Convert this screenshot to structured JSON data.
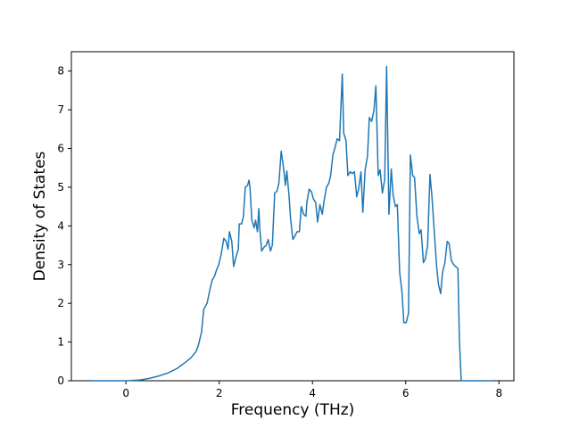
{
  "chart_data": {
    "type": "line",
    "x_label": "Frequency (THz)",
    "y_label": "Density of States",
    "x": [
      -0.73,
      0,
      0.3,
      0.5,
      0.7,
      0.9,
      1.1,
      1.3,
      1.4,
      1.5,
      1.55,
      1.62,
      1.67,
      1.74,
      1.8,
      1.85,
      1.9,
      1.94,
      1.99,
      2.04,
      2.1,
      2.15,
      2.19,
      2.22,
      2.27,
      2.31,
      2.36,
      2.41,
      2.43,
      2.48,
      2.52,
      2.56,
      2.61,
      2.64,
      2.66,
      2.7,
      2.75,
      2.78,
      2.82,
      2.85,
      2.87,
      2.91,
      2.96,
      3.01,
      3.05,
      3.1,
      3.14,
      3.19,
      3.24,
      3.28,
      3.33,
      3.38,
      3.42,
      3.45,
      3.5,
      3.53,
      3.58,
      3.63,
      3.67,
      3.72,
      3.76,
      3.81,
      3.86,
      3.88,
      3.93,
      3.98,
      4.02,
      4.07,
      4.11,
      4.16,
      4.21,
      4.25,
      4.3,
      4.35,
      4.39,
      4.44,
      4.48,
      4.53,
      4.58,
      4.64,
      4.67,
      4.72,
      4.76,
      4.81,
      4.85,
      4.9,
      4.95,
      4.99,
      5.04,
      5.08,
      5.13,
      5.18,
      5.22,
      5.27,
      5.32,
      5.36,
      5.41,
      5.45,
      5.5,
      5.55,
      5.59,
      5.64,
      5.69,
      5.73,
      5.78,
      5.82,
      5.87,
      5.92,
      5.96,
      6.01,
      6.06,
      6.1,
      6.15,
      6.19,
      6.24,
      6.29,
      6.33,
      6.38,
      6.42,
      6.47,
      6.52,
      6.56,
      6.61,
      6.66,
      6.7,
      6.75,
      6.79,
      6.84,
      6.89,
      6.93,
      6.98,
      7.03,
      7.07,
      7.12,
      7.15,
      7.19,
      7.87
    ],
    "series": [
      {
        "color": "#1f77b4",
        "values": [
          0,
          0,
          0.02,
          0.06,
          0.12,
          0.2,
          0.32,
          0.5,
          0.6,
          0.75,
          0.9,
          1.25,
          1.85,
          2.0,
          2.35,
          2.6,
          2.7,
          2.85,
          3.0,
          3.25,
          3.68,
          3.6,
          3.4,
          3.85,
          3.6,
          2.95,
          3.2,
          3.4,
          4.05,
          4.05,
          4.25,
          5.0,
          5.05,
          5.18,
          5.0,
          4.15,
          3.95,
          4.15,
          3.85,
          4.45,
          3.95,
          3.35,
          3.45,
          3.5,
          3.65,
          3.35,
          3.5,
          4.85,
          4.9,
          5.1,
          5.93,
          5.5,
          5.05,
          5.42,
          4.75,
          4.2,
          3.65,
          3.75,
          3.85,
          3.85,
          4.5,
          4.3,
          4.25,
          4.6,
          4.95,
          4.88,
          4.7,
          4.6,
          4.1,
          4.55,
          4.3,
          4.65,
          5.0,
          5.1,
          5.3,
          5.85,
          6.0,
          6.25,
          6.2,
          7.92,
          6.4,
          6.2,
          5.3,
          5.4,
          5.35,
          5.4,
          4.75,
          4.95,
          5.4,
          4.35,
          5.45,
          5.8,
          6.8,
          6.7,
          7.0,
          7.62,
          5.3,
          5.45,
          4.85,
          5.2,
          8.12,
          4.3,
          5.47,
          4.8,
          4.5,
          4.55,
          2.8,
          2.3,
          1.5,
          1.5,
          1.75,
          5.83,
          5.3,
          5.25,
          4.25,
          3.8,
          3.9,
          3.05,
          3.15,
          3.5,
          5.33,
          4.8,
          3.9,
          3.0,
          2.5,
          2.25,
          2.8,
          3.05,
          3.6,
          3.55,
          3.1,
          3.0,
          2.95,
          2.9,
          1.1,
          0,
          0
        ]
      }
    ],
    "xlim": [
      -1.17,
      8.32
    ],
    "ylim": [
      0,
      8.5
    ],
    "xticks": [
      0,
      2,
      4,
      6,
      8
    ],
    "yticks": [
      0,
      1,
      2,
      3,
      4,
      5,
      6,
      7,
      8
    ]
  }
}
